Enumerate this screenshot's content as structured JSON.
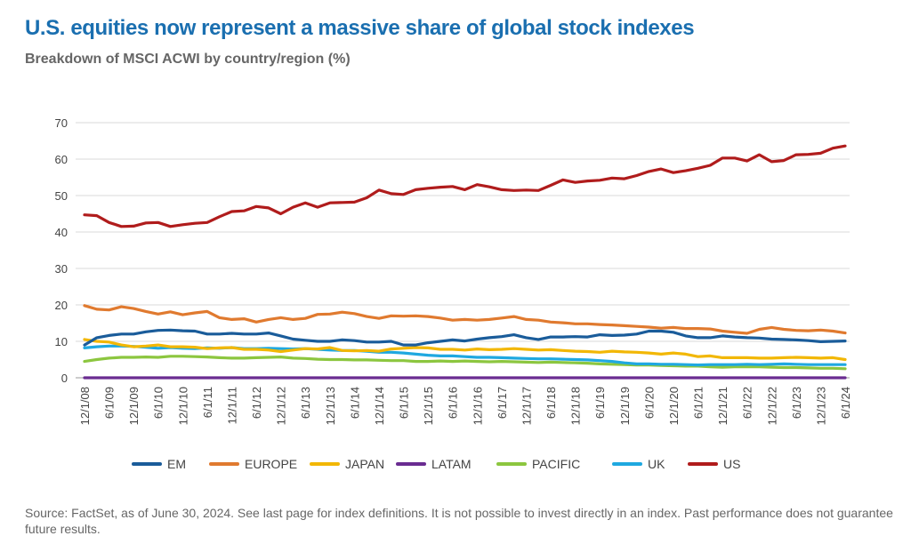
{
  "title": "U.S. equities now represent a massive share of global stock indexes",
  "subtitle": "Breakdown of MSCI ACWI by country/region (%)",
  "footer": "Source: FactSet, as of June 30, 2024. See last page for index definitions. It is not possible to invest directly in an index. Past performance does not guarantee future results.",
  "chart_data": {
    "type": "line",
    "title": "U.S. equities now represent a massive share of global stock indexes",
    "subtitle": "Breakdown of MSCI ACWI by country/region (%)",
    "xlabel": "",
    "ylabel": "",
    "ylim": [
      0,
      70
    ],
    "yticks": [
      0,
      10,
      20,
      30,
      40,
      50,
      60,
      70
    ],
    "grid": true,
    "legend_position": "bottom",
    "x_tick_labels": [
      "12/1/08",
      "6/1/09",
      "12/1/09",
      "6/1/10",
      "12/1/10",
      "6/1/11",
      "12/1/11",
      "6/1/12",
      "12/1/12",
      "6/1/13",
      "12/1/13",
      "6/1/14",
      "12/1/14",
      "6/1/15",
      "12/1/15",
      "6/1/16",
      "12/1/16",
      "6/1/17",
      "12/1/17",
      "6/1/18",
      "12/1/18",
      "6/1/19",
      "12/1/19",
      "6/1/20",
      "12/1/20",
      "6/1/21",
      "12/1/21",
      "6/1/22",
      "12/1/22",
      "6/1/23",
      "12/1/23",
      "6/1/24"
    ],
    "x": [
      "2008-12",
      "2009-03",
      "2009-06",
      "2009-09",
      "2009-12",
      "2010-03",
      "2010-06",
      "2010-09",
      "2010-12",
      "2011-03",
      "2011-06",
      "2011-09",
      "2011-12",
      "2012-03",
      "2012-06",
      "2012-09",
      "2012-12",
      "2013-03",
      "2013-06",
      "2013-09",
      "2013-12",
      "2014-03",
      "2014-06",
      "2014-09",
      "2014-12",
      "2015-03",
      "2015-06",
      "2015-09",
      "2015-12",
      "2016-03",
      "2016-06",
      "2016-09",
      "2016-12",
      "2017-03",
      "2017-06",
      "2017-09",
      "2017-12",
      "2018-03",
      "2018-06",
      "2018-09",
      "2018-12",
      "2019-03",
      "2019-06",
      "2019-09",
      "2019-12",
      "2020-03",
      "2020-06",
      "2020-09",
      "2020-12",
      "2021-03",
      "2021-06",
      "2021-09",
      "2021-12",
      "2022-03",
      "2022-06",
      "2022-09",
      "2022-12",
      "2023-03",
      "2023-06",
      "2023-09",
      "2023-12",
      "2024-03",
      "2024-06"
    ],
    "series": [
      {
        "name": "EM",
        "color": "#1a5c9a",
        "values": [
          9.0,
          11.0,
          11.6,
          12.0,
          12.0,
          12.6,
          13.0,
          13.1,
          12.9,
          12.8,
          12.0,
          12.0,
          12.2,
          12.0,
          12.0,
          12.3,
          11.5,
          10.6,
          10.3,
          10.0,
          10.0,
          10.4,
          10.2,
          9.8,
          9.8,
          10.0,
          9.0,
          9.0,
          9.6,
          10.0,
          10.4,
          10.1,
          10.6,
          11.0,
          11.3,
          11.8,
          11.0,
          10.5,
          11.2,
          11.2,
          11.3,
          11.2,
          11.8,
          11.6,
          11.7,
          12.0,
          12.8,
          12.8,
          12.5,
          11.5,
          11.0,
          11.0,
          11.5,
          11.2,
          11.0,
          10.9,
          10.6,
          10.5,
          10.4,
          10.2,
          9.9,
          10.0,
          10.1
        ]
      },
      {
        "name": "EUROPE",
        "color": "#e07a2f",
        "values": [
          19.8,
          18.8,
          18.6,
          19.5,
          19.0,
          18.2,
          17.5,
          18.1,
          17.3,
          17.8,
          18.2,
          16.5,
          16.0,
          16.2,
          15.3,
          16.0,
          16.5,
          16.0,
          16.3,
          17.4,
          17.5,
          18.0,
          17.6,
          16.8,
          16.3,
          17.0,
          16.9,
          17.0,
          16.8,
          16.4,
          15.8,
          16.0,
          15.8,
          16.0,
          16.4,
          16.8,
          16.0,
          15.8,
          15.3,
          15.1,
          14.8,
          14.8,
          14.6,
          14.5,
          14.3,
          14.1,
          13.9,
          13.6,
          13.8,
          13.5,
          13.5,
          13.4,
          12.8,
          12.5,
          12.2,
          13.3,
          13.8,
          13.3,
          13.0,
          12.9,
          13.1,
          12.8,
          12.3
        ]
      },
      {
        "name": "JAPAN",
        "color": "#f2b705",
        "values": [
          10.5,
          10.0,
          9.8,
          9.0,
          8.5,
          8.7,
          9.0,
          8.5,
          8.5,
          8.4,
          8.0,
          8.2,
          8.3,
          7.8,
          7.8,
          7.6,
          7.2,
          7.6,
          8.0,
          7.9,
          8.3,
          7.5,
          7.4,
          7.5,
          7.3,
          7.9,
          8.1,
          8.3,
          8.2,
          7.8,
          7.8,
          7.6,
          7.9,
          7.7,
          7.8,
          8.0,
          7.8,
          7.6,
          7.7,
          7.5,
          7.3,
          7.2,
          7.0,
          7.3,
          7.1,
          7.0,
          6.8,
          6.5,
          6.8,
          6.5,
          5.8,
          6.0,
          5.5,
          5.5,
          5.5,
          5.4,
          5.4,
          5.5,
          5.6,
          5.5,
          5.4,
          5.5,
          5.0
        ]
      },
      {
        "name": "LATAM",
        "color": "#6a2c91",
        "values": [
          0,
          0,
          0,
          0,
          0,
          0,
          0,
          0,
          0,
          0,
          0,
          0,
          0,
          0,
          0,
          0,
          0,
          0,
          0,
          0,
          0,
          0,
          0,
          0,
          0,
          0,
          0,
          0,
          0,
          0,
          0,
          0,
          0,
          0,
          0,
          0,
          0,
          0,
          0,
          0,
          0,
          0,
          0,
          0,
          0,
          0,
          0,
          0,
          0,
          0,
          0,
          0,
          0,
          0,
          0,
          0,
          0,
          0,
          0,
          0,
          0,
          0,
          0
        ]
      },
      {
        "name": "PACIFIC",
        "color": "#8cc63f",
        "values": [
          4.5,
          5.0,
          5.4,
          5.6,
          5.6,
          5.7,
          5.6,
          5.9,
          5.9,
          5.8,
          5.7,
          5.5,
          5.4,
          5.4,
          5.5,
          5.6,
          5.7,
          5.4,
          5.3,
          5.1,
          5.0,
          5.0,
          4.9,
          4.9,
          4.8,
          4.7,
          4.7,
          4.5,
          4.5,
          4.6,
          4.5,
          4.6,
          4.5,
          4.4,
          4.5,
          4.4,
          4.3,
          4.2,
          4.3,
          4.2,
          4.1,
          4.0,
          3.8,
          3.7,
          3.6,
          3.5,
          3.5,
          3.4,
          3.3,
          3.2,
          3.2,
          3.0,
          2.9,
          3.0,
          3.0,
          3.0,
          2.9,
          2.8,
          2.8,
          2.7,
          2.6,
          2.6,
          2.5
        ]
      },
      {
        "name": "UK",
        "color": "#1fa8e0",
        "values": [
          8.2,
          8.5,
          8.7,
          8.7,
          8.6,
          8.4,
          8.1,
          8.3,
          8.1,
          8.0,
          8.2,
          8.1,
          8.3,
          8.0,
          8.0,
          8.1,
          8.0,
          7.9,
          8.0,
          7.8,
          7.6,
          7.5,
          7.5,
          7.3,
          7.0,
          7.0,
          6.8,
          6.5,
          6.2,
          6.0,
          6.0,
          5.8,
          5.6,
          5.6,
          5.5,
          5.4,
          5.3,
          5.2,
          5.2,
          5.1,
          5.0,
          4.9,
          4.7,
          4.5,
          4.1,
          3.8,
          3.8,
          3.7,
          3.7,
          3.6,
          3.5,
          3.6,
          3.6,
          3.6,
          3.7,
          3.6,
          3.7,
          3.8,
          3.7,
          3.6,
          3.6,
          3.6,
          3.6
        ]
      },
      {
        "name": "US",
        "color": "#b01c1c",
        "values": [
          44.7,
          44.5,
          42.6,
          41.5,
          41.6,
          42.5,
          42.6,
          41.5,
          42.0,
          42.4,
          42.6,
          44.2,
          45.6,
          45.8,
          47.0,
          46.6,
          45.0,
          46.8,
          48.0,
          46.8,
          48.0,
          48.1,
          48.2,
          49.4,
          51.5,
          50.5,
          50.3,
          51.6,
          52.0,
          52.3,
          52.5,
          51.6,
          53.0,
          52.4,
          51.6,
          51.4,
          51.5,
          51.4,
          52.8,
          54.3,
          53.6,
          54.0,
          54.2,
          54.8,
          54.6,
          55.5,
          56.6,
          57.3,
          56.3,
          56.8,
          57.5,
          58.3,
          60.3,
          60.3,
          59.5,
          61.2,
          59.3,
          59.6,
          61.2,
          61.3,
          61.6,
          63.0,
          63.6
        ]
      }
    ]
  }
}
